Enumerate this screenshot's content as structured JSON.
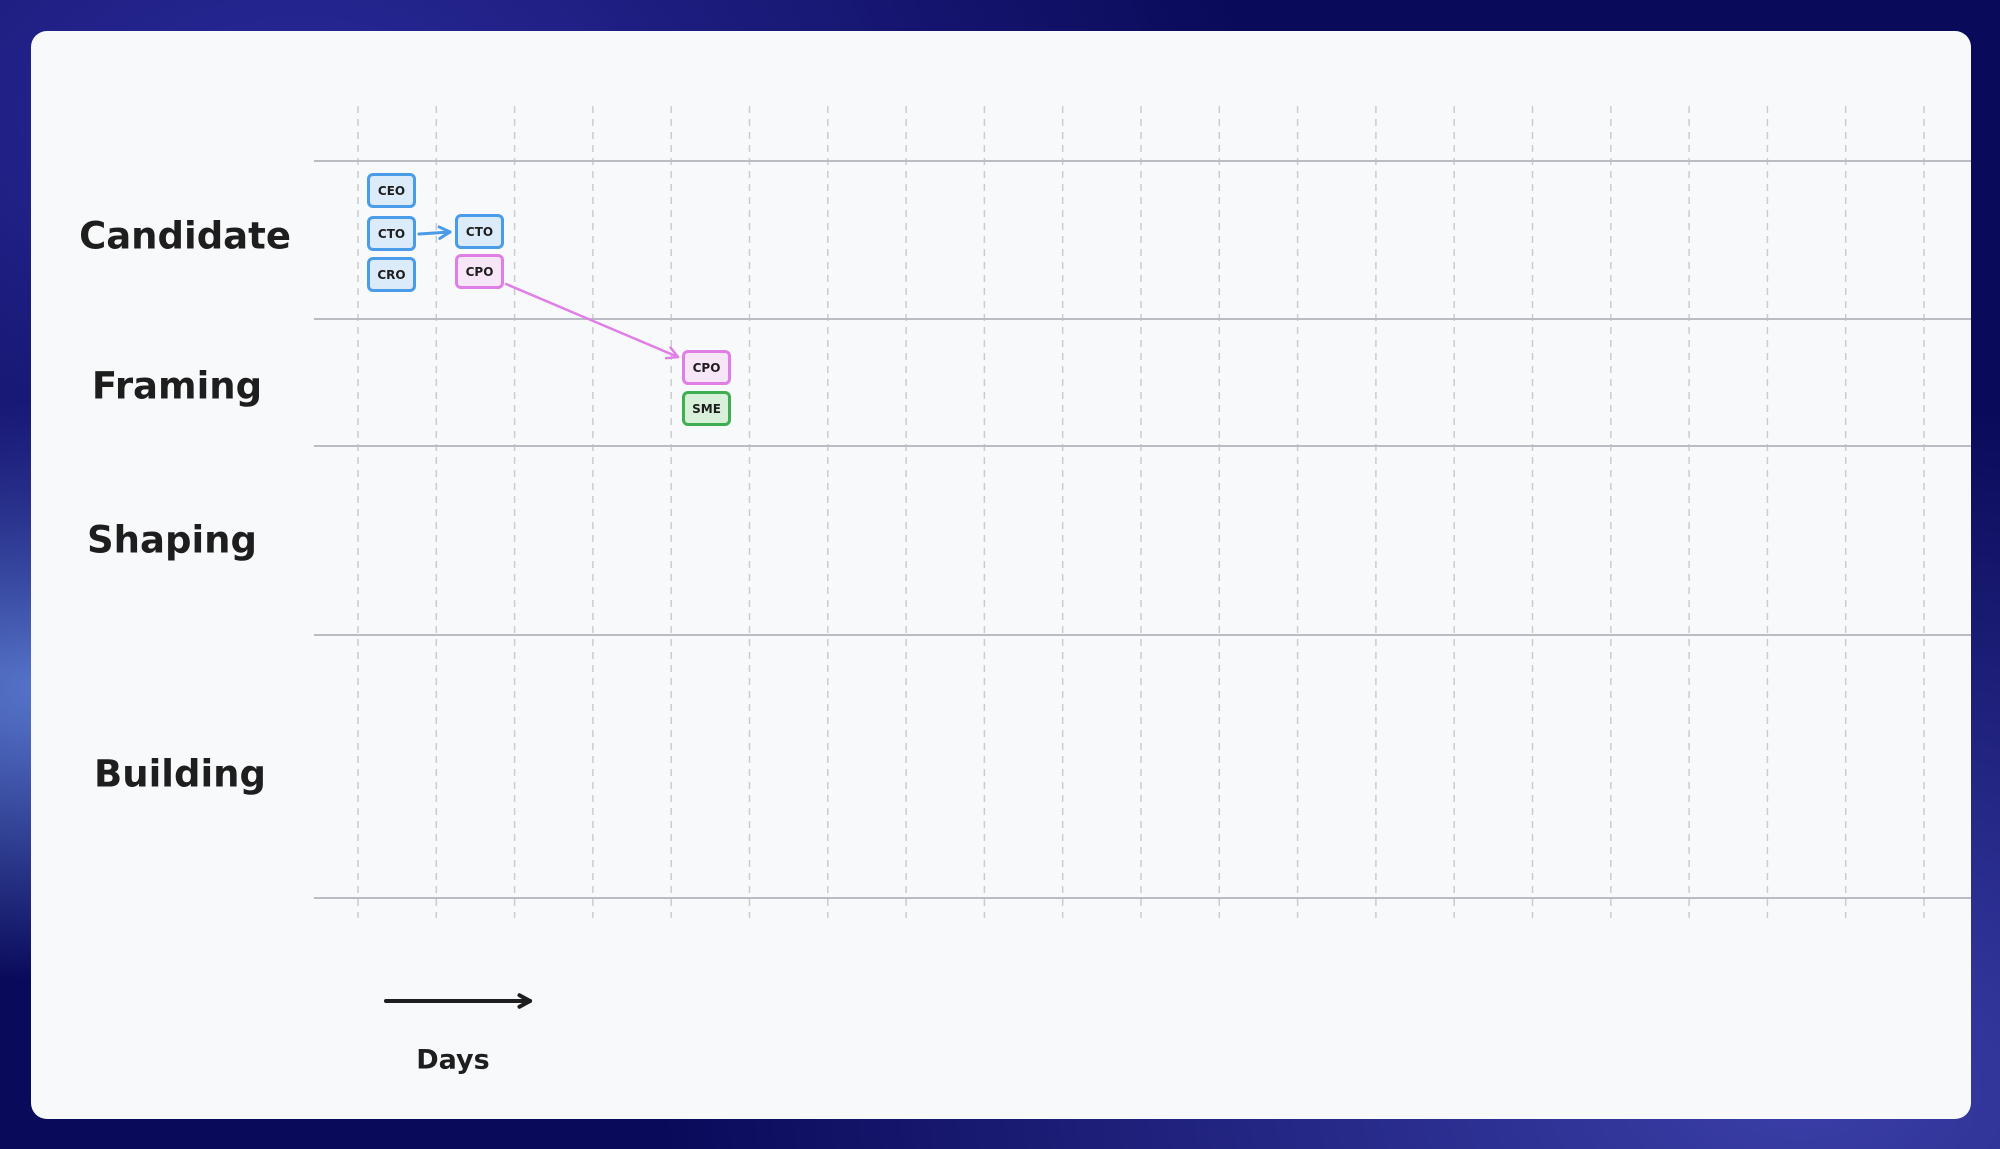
{
  "lanes": [
    "Candidate",
    "Framing",
    "Shaping",
    "Building"
  ],
  "axis_label": "Days",
  "colors": {
    "blue": "#4a9be8",
    "pink": "#e07ee8",
    "green": "#3fae50"
  },
  "boxes": [
    {
      "label": "CEO",
      "color": "blue"
    },
    {
      "label": "CTO",
      "color": "blue"
    },
    {
      "label": "CRO",
      "color": "blue"
    },
    {
      "label": "CTO",
      "color": "blue"
    },
    {
      "label": "CPO",
      "color": "pink"
    },
    {
      "label": "CPO",
      "color": "pink"
    },
    {
      "label": "SME",
      "color": "green"
    }
  ]
}
